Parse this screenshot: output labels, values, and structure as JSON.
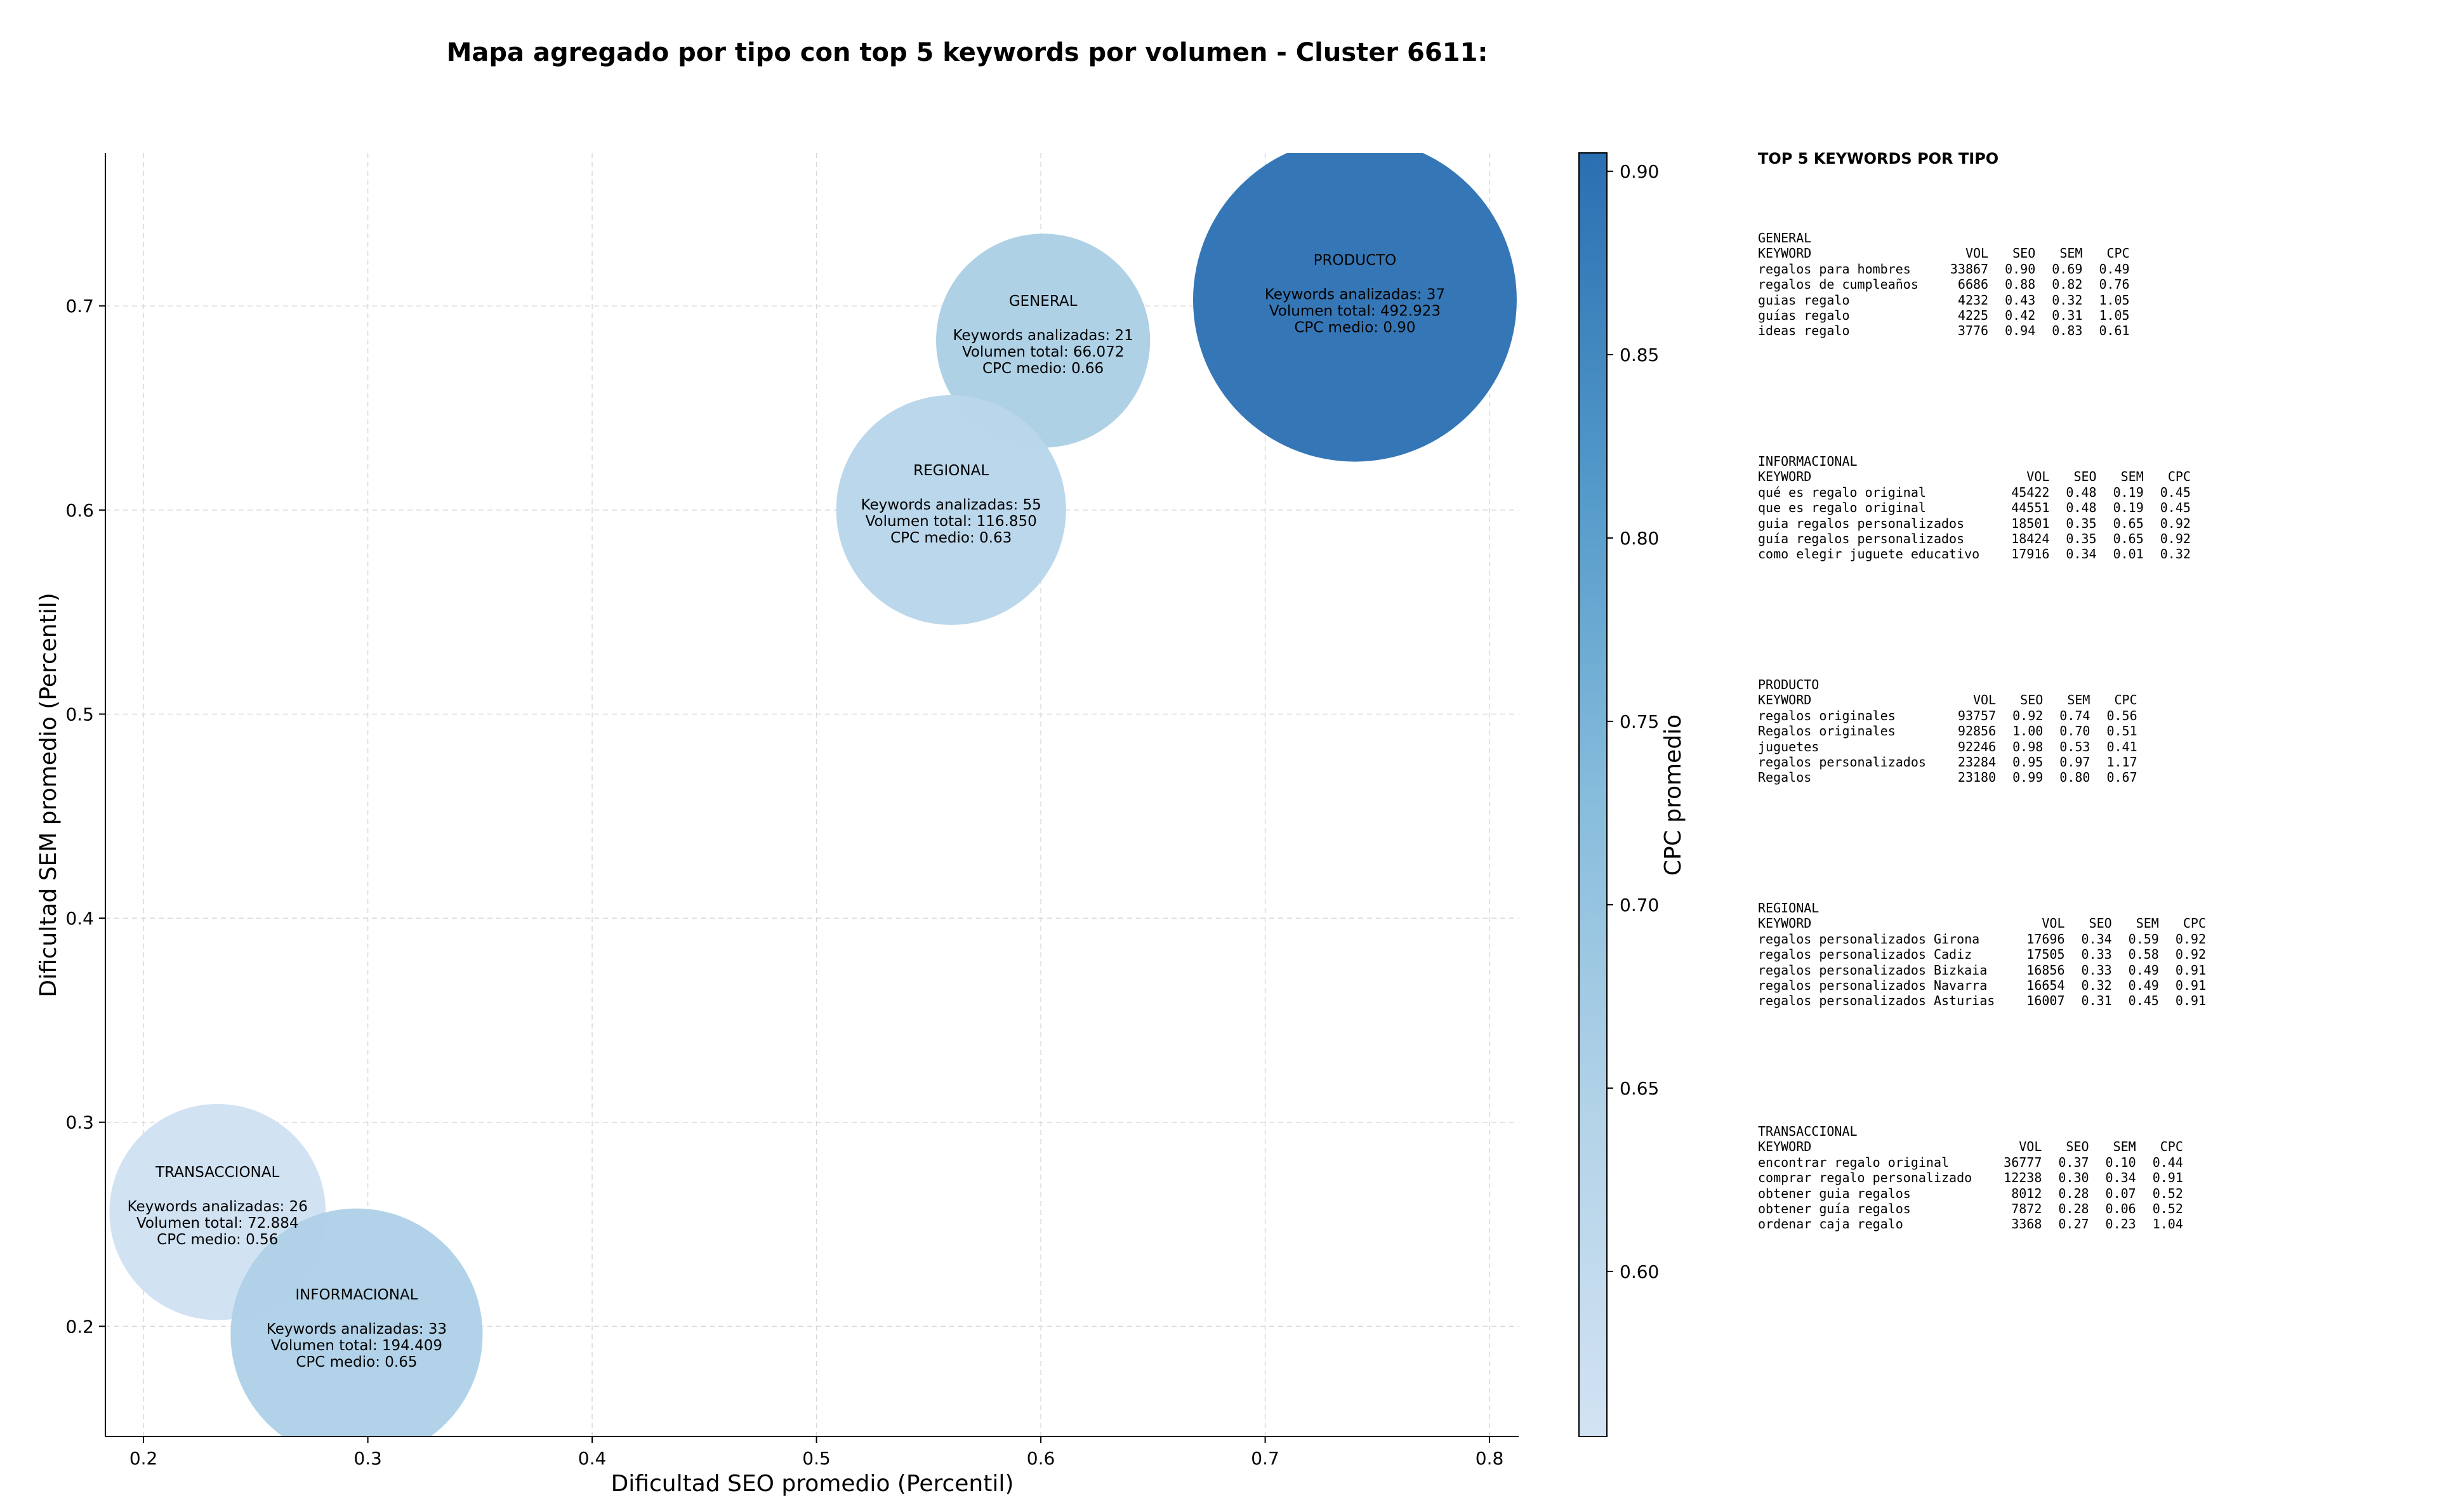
{
  "chart_data": {
    "type": "scatter",
    "title": "Mapa agregado por tipo con top 5 keywords por volumen - Cluster 6611:",
    "xlabel": "Dificultad SEO promedio (Percentil)",
    "ylabel": "Dificultad SEM promedio (Percentil)",
    "xlim": [
      0.183,
      0.813
    ],
    "ylim": [
      0.146,
      0.775
    ],
    "xticks": [
      "0.2",
      "0.3",
      "0.4",
      "0.5",
      "0.6",
      "0.7",
      "0.8"
    ],
    "yticks": [
      "0.2",
      "0.3",
      "0.4",
      "0.5",
      "0.6",
      "0.7"
    ],
    "grid": true,
    "colorbar": {
      "label": "CPC promedio",
      "range": [
        0.555,
        0.905
      ],
      "ticks": [
        "0.60",
        "0.65",
        "0.70",
        "0.75",
        "0.80",
        "0.85",
        "0.90"
      ],
      "colormap": "Blues"
    },
    "points": [
      {
        "name": "GENERAL",
        "x": 0.601,
        "y": 0.683,
        "line1": "Keywords analizadas: 21",
        "line2": "Volumen total: 66.072",
        "line3": "CPC medio: 0.66",
        "cpc": 0.66,
        "color": "#abcfe5"
      },
      {
        "name": "PRODUCTO",
        "x": 0.74,
        "y": 0.703,
        "line1": "Keywords analizadas: 37",
        "line2": "Volumen total: 492.923",
        "line3": "CPC medio: 0.90",
        "cpc": 0.9,
        "color": "#2e73b4"
      },
      {
        "name": "REGIONAL",
        "x": 0.56,
        "y": 0.6,
        "line1": "Keywords analizadas: 55",
        "line2": "Volumen total: 116.850",
        "line3": "CPC medio: 0.63",
        "cpc": 0.63,
        "color": "#b9d6ea"
      },
      {
        "name": "TRANSACCIONAL",
        "x": 0.233,
        "y": 0.256,
        "line1": "Keywords analizadas: 26",
        "line2": "Volumen total: 72.884",
        "line3": "CPC medio: 0.56",
        "cpc": 0.56,
        "color": "#d0e1f2"
      },
      {
        "name": "INFORMACIONAL",
        "x": 0.295,
        "y": 0.196,
        "line1": "Keywords analizadas: 33",
        "line2": "Volumen total: 194.409",
        "line3": "CPC medio: 0.65",
        "cpc": 0.65,
        "color": "#aed1e7"
      }
    ]
  },
  "panel": {
    "title": "TOP 5 KEYWORDS POR TIPO",
    "columns": [
      "KEYWORD",
      "VOL",
      "SEO",
      "SEM",
      "CPC"
    ],
    "groups": [
      {
        "type": "GENERAL",
        "rows": [
          [
            "regalos para hombres",
            "33867",
            "0.90",
            "0.69",
            "0.49"
          ],
          [
            "regalos de cumpleaños",
            "6686",
            "0.88",
            "0.82",
            "0.76"
          ],
          [
            "guias regalo",
            "4232",
            "0.43",
            "0.32",
            "1.05"
          ],
          [
            "guías regalo",
            "4225",
            "0.42",
            "0.31",
            "1.05"
          ],
          [
            "ideas regalo",
            "3776",
            "0.94",
            "0.83",
            "0.61"
          ]
        ]
      },
      {
        "type": "INFORMACIONAL",
        "rows": [
          [
            "qué es regalo original",
            "45422",
            "0.48",
            "0.19",
            "0.45"
          ],
          [
            "que es regalo original",
            "44551",
            "0.48",
            "0.19",
            "0.45"
          ],
          [
            "guia regalos personalizados",
            "18501",
            "0.35",
            "0.65",
            "0.92"
          ],
          [
            "guía regalos personalizados",
            "18424",
            "0.35",
            "0.65",
            "0.92"
          ],
          [
            "como elegir juguete educativo",
            "17916",
            "0.34",
            "0.01",
            "0.32"
          ]
        ]
      },
      {
        "type": "PRODUCTO",
        "rows": [
          [
            "regalos originales",
            "93757",
            "0.92",
            "0.74",
            "0.56"
          ],
          [
            "Regalos originales",
            "92856",
            "1.00",
            "0.70",
            "0.51"
          ],
          [
            "juguetes",
            "92246",
            "0.98",
            "0.53",
            "0.41"
          ],
          [
            "regalos personalizados",
            "23284",
            "0.95",
            "0.97",
            "1.17"
          ],
          [
            "Regalos",
            "23180",
            "0.99",
            "0.80",
            "0.67"
          ]
        ]
      },
      {
        "type": "REGIONAL",
        "rows": [
          [
            "regalos personalizados Girona",
            "17696",
            "0.34",
            "0.59",
            "0.92"
          ],
          [
            "regalos personalizados Cadiz",
            "17505",
            "0.33",
            "0.58",
            "0.92"
          ],
          [
            "regalos personalizados Bizkaia",
            "16856",
            "0.33",
            "0.49",
            "0.91"
          ],
          [
            "regalos personalizados Navarra",
            "16654",
            "0.32",
            "0.49",
            "0.91"
          ],
          [
            "regalos personalizados Asturias",
            "16007",
            "0.31",
            "0.45",
            "0.91"
          ]
        ]
      },
      {
        "type": "TRANSACCIONAL",
        "rows": [
          [
            "encontrar regalo original",
            "36777",
            "0.37",
            "0.10",
            "0.44"
          ],
          [
            "comprar regalo personalizado",
            "12238",
            "0.30",
            "0.34",
            "0.91"
          ],
          [
            "obtener guia regalos",
            "8012",
            "0.28",
            "0.07",
            "0.52"
          ],
          [
            "obtener guía regalos",
            "7872",
            "0.28",
            "0.06",
            "0.52"
          ],
          [
            "ordenar caja regalo",
            "3368",
            "0.27",
            "0.23",
            "1.04"
          ]
        ]
      }
    ]
  }
}
